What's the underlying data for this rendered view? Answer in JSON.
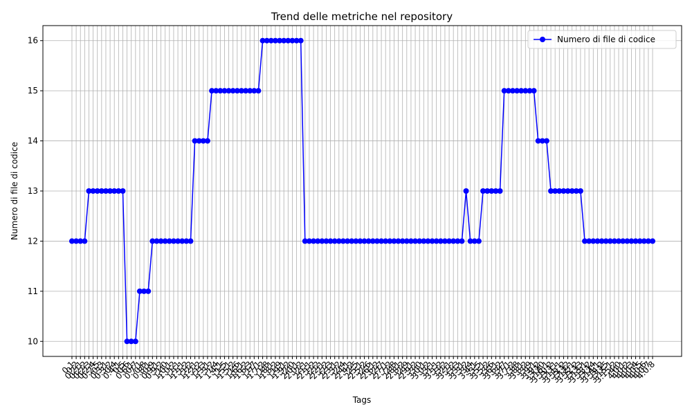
{
  "chart_data": {
    "type": "line",
    "title": "Trend delle metriche nel repository",
    "xlabel": "Tags",
    "ylabel": "Numero di file di codice",
    "categories": [
      "0.1",
      "0.2",
      "0.2.1",
      "0.2.2",
      "0.2.3",
      "0.2.4",
      "0.2.5",
      "0.3",
      "0.3.1",
      "0.3.2",
      "0.4",
      "0.4.1",
      "0.5",
      "0.6",
      "0.6.1",
      "0.7",
      "0.7.1",
      "0.8",
      "0.8.1",
      "0.9",
      "0.9.1",
      "0.9.2",
      "1.0",
      "1.0.1",
      "1.0.2",
      "1.1",
      "1.1.1",
      "1.1.2",
      "1.2",
      "1.2.1",
      "1.2.2",
      "1.3",
      "1.3.1",
      "1.3.2",
      "1.4",
      "1.4.1",
      "1.5",
      "1.5.1",
      "1.5.2",
      "1.6",
      "1.6.1",
      "1.6.2",
      "1.6.3",
      "1.7",
      "1.7.1",
      "1.7.2",
      "1.8",
      "1.8.1",
      "1.8.2",
      "1.9",
      "1.9.1",
      "1.9.2",
      "2.0",
      "2.0.1",
      "2.0.2",
      "2.1",
      "2.1.1",
      "2.1.2",
      "2.2",
      "2.2.1",
      "2.2.2",
      "2.3",
      "2.3.1",
      "2.3.2",
      "2.4",
      "2.4.1",
      "2.4.2",
      "2.5",
      "2.5.1",
      "2.5.2",
      "2.6",
      "2.6.1",
      "2.6.2",
      "2.7",
      "2.7.1",
      "2.7.2",
      "2.8",
      "2.8.1",
      "2.8.2",
      "2.9",
      "2.9.1",
      "2.9.2",
      "3.0",
      "3.0.1",
      "3.0.2",
      "3.1",
      "3.1.1",
      "3.1.2",
      "3.2",
      "3.2.1",
      "3.2.2",
      "3.3",
      "3.3.1",
      "3.3.2",
      "3.4",
      "3.4.1",
      "3.5",
      "3.5.1",
      "3.5.2",
      "3.6",
      "3.6.1",
      "3.6.2",
      "3.7",
      "3.7.1",
      "3.7.2",
      "3.8",
      "3.8.1",
      "3.8.2",
      "3.9",
      "3.9.1",
      "3.9.2",
      "3.10",
      "3.10.1",
      "3.10.2",
      "3.11",
      "3.11.1",
      "3.11.2",
      "3.12",
      "3.12.1",
      "3.12.2",
      "3.13",
      "3.13.1",
      "3.13.2",
      "3.14",
      "3.14.1",
      "3.14.2",
      "3.15",
      "3.15.1",
      "3.15.2",
      "4.0",
      "4.0.1",
      "4.0.2",
      "4.0.3",
      "4.0.4",
      "4.0.5",
      "4.0.6",
      "4.0.7",
      "4.0.8"
    ],
    "series": [
      {
        "name": "Numero di file di codice",
        "color": "#0000ff",
        "values": [
          12,
          12,
          12,
          12,
          13,
          13,
          13,
          13,
          13,
          13,
          13,
          13,
          13,
          10,
          10,
          10,
          11,
          11,
          11,
          12,
          12,
          12,
          12,
          12,
          12,
          12,
          12,
          12,
          12,
          14,
          14,
          14,
          14,
          15,
          15,
          15,
          15,
          15,
          15,
          15,
          15,
          15,
          15,
          15,
          15,
          16,
          16,
          16,
          16,
          16,
          16,
          16,
          16,
          16,
          16,
          12,
          12,
          12,
          12,
          12,
          12,
          12,
          12,
          12,
          12,
          12,
          12,
          12,
          12,
          12,
          12,
          12,
          12,
          12,
          12,
          12,
          12,
          12,
          12,
          12,
          12,
          12,
          12,
          12,
          12,
          12,
          12,
          12,
          12,
          12,
          12,
          12,
          12,
          13,
          12,
          12,
          12,
          13,
          13,
          13,
          13,
          13,
          15,
          15,
          15,
          15,
          15,
          15,
          15,
          15,
          14,
          14,
          14,
          13,
          13,
          13,
          13,
          13,
          13,
          13,
          13,
          12,
          12,
          12,
          12,
          12,
          12,
          12,
          12,
          12,
          12,
          12,
          12,
          12,
          12,
          12,
          12,
          12
        ]
      }
    ],
    "ylim": [
      9.7,
      16.3
    ],
    "yticks": [
      10,
      11,
      12,
      13,
      14,
      15,
      16
    ],
    "grid": true,
    "legend": "upper right"
  }
}
